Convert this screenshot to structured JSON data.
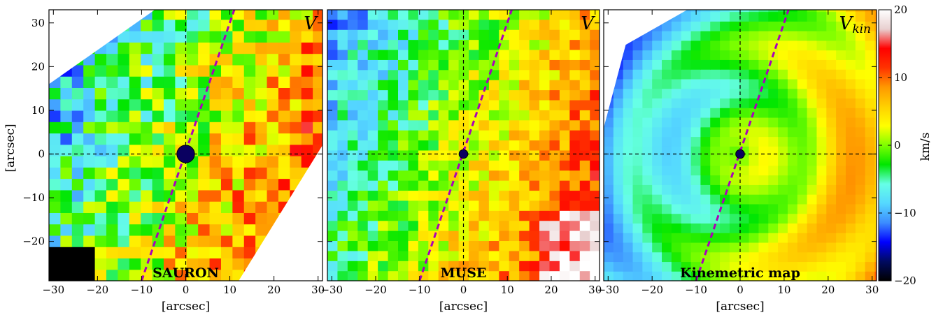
{
  "figure": {
    "ylabel": "[arcsec]",
    "colorbar": {
      "label": "km/s",
      "min": -20,
      "max": 20,
      "ticks": [
        -20,
        -10,
        0,
        10,
        20
      ],
      "colormap": [
        "#000000",
        "#000a60",
        "#0000ff",
        "#3c8cff",
        "#55d8ff",
        "#66ffe6",
        "#00e600",
        "#7fff00",
        "#ffff00",
        "#ffd000",
        "#ff9900",
        "#ff3300",
        "#ff0000",
        "#e8d0d0",
        "#ffffff"
      ]
    }
  },
  "chart_data": [
    {
      "type": "heatmap",
      "panel_label": "SAURON",
      "corner_label": "V",
      "corner_label_sub": "",
      "xlabel": "[arcsec]",
      "xlim": [
        -31,
        31
      ],
      "ylim": [
        -29,
        33
      ],
      "xticks": [
        -30,
        -20,
        -10,
        0,
        10,
        20,
        30
      ],
      "yticks": [
        -20,
        -10,
        0,
        10,
        20,
        30
      ],
      "center_marker_radius_arcsec": 2.0,
      "position_angle_line": {
        "x1": -10,
        "y1": -29,
        "x2": 11,
        "y2": 33,
        "color": "#aa00bb"
      },
      "map_pattern": "blotchy, NE-SW gradient, blue at upper left, red/orange at right"
    },
    {
      "type": "heatmap",
      "panel_label": "MUSE",
      "corner_label": "V",
      "corner_label_sub": "",
      "xlabel": "[arcsec]",
      "xlim": [
        -31,
        31
      ],
      "ylim": [
        -29,
        33
      ],
      "xticks": [
        -30,
        -20,
        -10,
        0,
        10,
        20,
        30
      ],
      "yticks": [
        -20,
        -10,
        0,
        10,
        20,
        30
      ],
      "center_marker_radius_arcsec": 1.0,
      "position_angle_line": {
        "x1": -10,
        "y1": -29,
        "x2": 11,
        "y2": 33,
        "color": "#aa00bb"
      },
      "map_pattern": "voronoi bins, blue left, red lower right"
    },
    {
      "type": "heatmap",
      "panel_label": "Kinemetric map",
      "corner_label": "V",
      "corner_label_sub": "kin",
      "xlabel": "[arcsec]",
      "xlim": [
        -31,
        31
      ],
      "ylim": [
        -29,
        33
      ],
      "xticks": [
        -30,
        -20,
        -10,
        0,
        10,
        20,
        30
      ],
      "yticks": [
        -20,
        -10,
        0,
        10,
        20,
        30
      ],
      "center_marker_radius_arcsec": 1.0,
      "position_angle_line": {
        "x1": -10,
        "y1": -29,
        "x2": 11,
        "y2": 33,
        "color": "#aa00bb"
      },
      "map_pattern": "smooth concentric rings, cyan/green centre, red lower right"
    }
  ]
}
